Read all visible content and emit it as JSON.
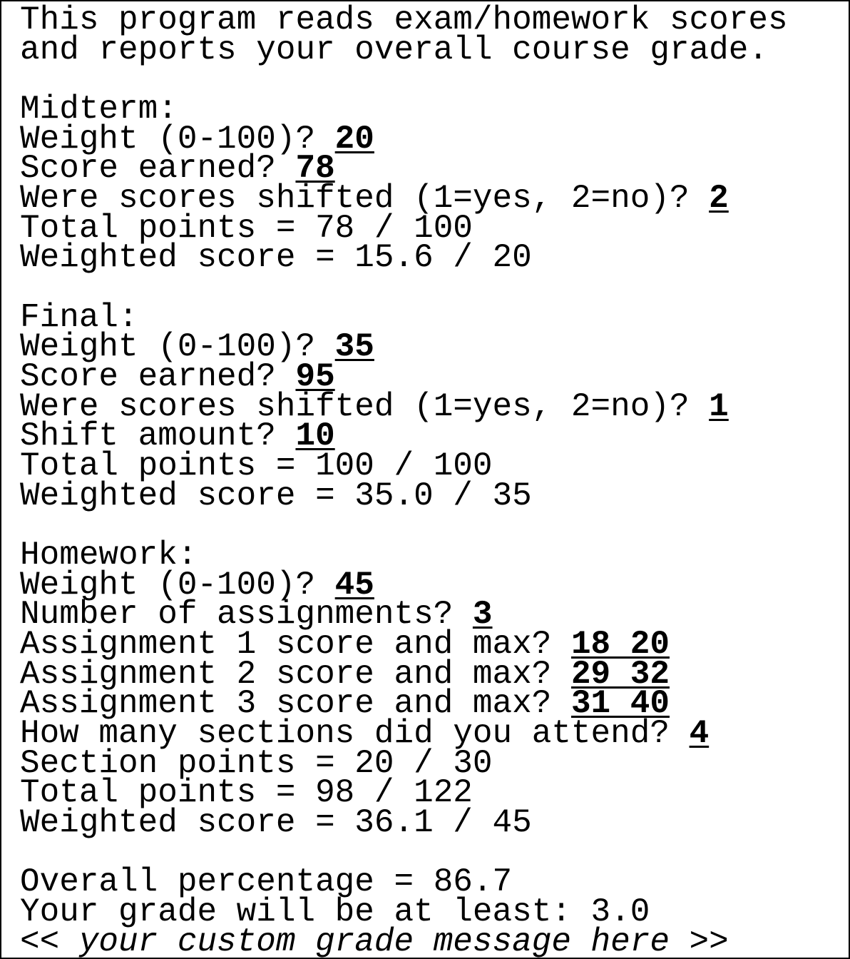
{
  "intro": [
    "This program reads exam/homework scores",
    "and reports your overall course grade."
  ],
  "sections": [
    {
      "heading": "Midterm:",
      "lines": [
        {
          "prompt": "Weight (0-100)? ",
          "input": "20"
        },
        {
          "prompt": "Score earned? ",
          "input": "78"
        },
        {
          "prompt": "Were scores shifted (1=yes, 2=no)? ",
          "input": "2"
        },
        {
          "text": "Total points = 78 / 100"
        },
        {
          "text": "Weighted score = 15.6 / 20"
        }
      ]
    },
    {
      "heading": "Final:",
      "lines": [
        {
          "prompt": "Weight (0-100)? ",
          "input": "35"
        },
        {
          "prompt": "Score earned? ",
          "input": "95"
        },
        {
          "prompt": "Were scores shifted (1=yes, 2=no)? ",
          "input": "1"
        },
        {
          "prompt": "Shift amount? ",
          "input": "10"
        },
        {
          "text": "Total points = 100 / 100"
        },
        {
          "text": "Weighted score = 35.0 / 35"
        }
      ]
    },
    {
      "heading": "Homework:",
      "lines": [
        {
          "prompt": "Weight (0-100)? ",
          "input": "45"
        },
        {
          "prompt": "Number of assignments? ",
          "input": "3"
        },
        {
          "prompt": "Assignment 1 score and max? ",
          "input": "18 20"
        },
        {
          "prompt": "Assignment 2 score and max? ",
          "input": "29 32"
        },
        {
          "prompt": "Assignment 3 score and max? ",
          "input": "31 40"
        },
        {
          "prompt": "How many sections did you attend? ",
          "input": "4"
        },
        {
          "text": "Section points = 20 / 30"
        },
        {
          "text": "Total points = 98 / 122"
        },
        {
          "text": "Weighted score = 36.1 / 45"
        }
      ]
    }
  ],
  "summary": [
    "Overall percentage = 86.7",
    "Your grade will be at least: 3.0"
  ],
  "custom_message": "<< your custom grade message here >>"
}
